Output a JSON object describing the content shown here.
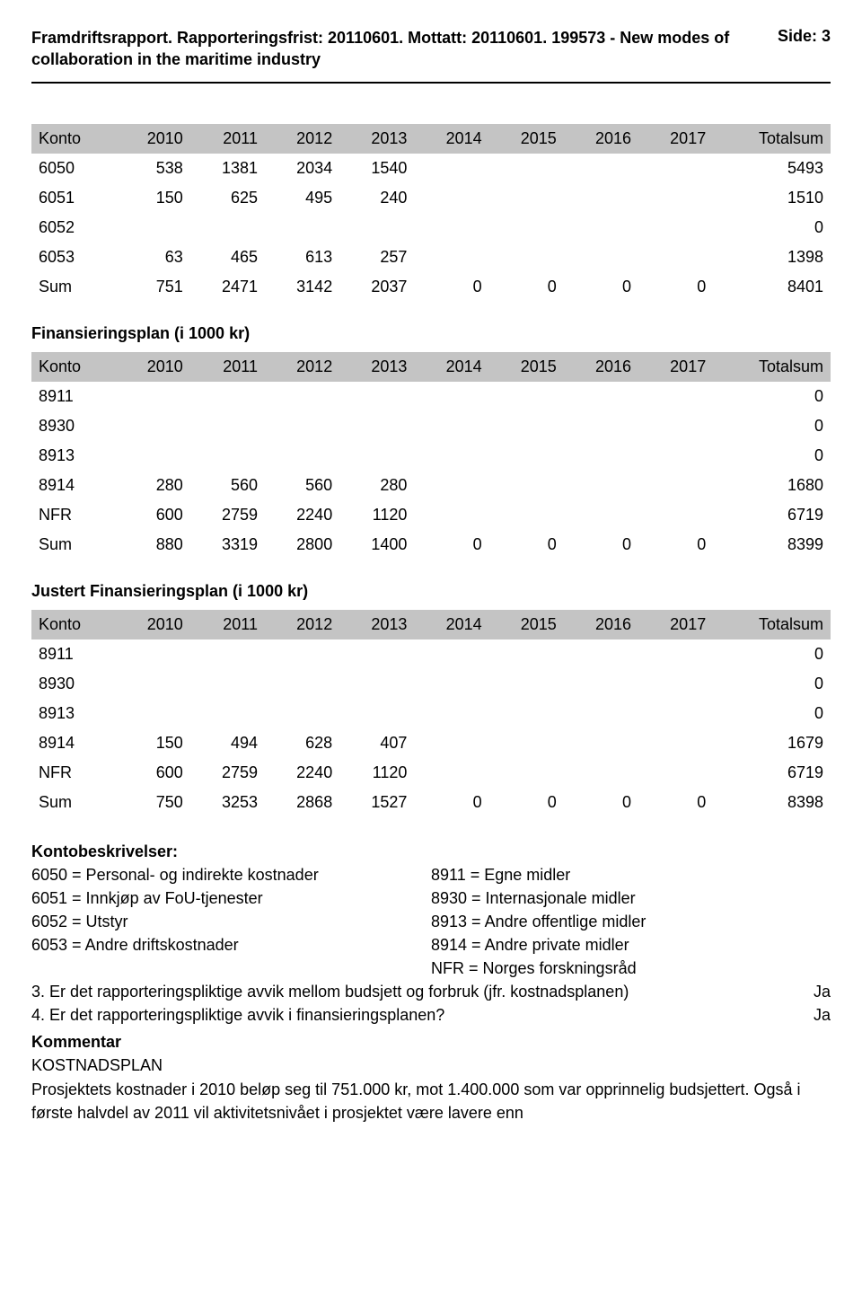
{
  "header": {
    "title_line": "Framdriftsrapport. Rapporteringsfrist: 20110601. Mottatt: 20110601.",
    "subtitle": "199573 - New modes of collaboration in the maritime industry",
    "page_label": "Side: 3"
  },
  "table1": {
    "columns": [
      "Konto",
      "2010",
      "2011",
      "2012",
      "2013",
      "2014",
      "2015",
      "2016",
      "2017",
      "Totalsum"
    ],
    "rows": [
      [
        "6050",
        "538",
        "1381",
        "2034",
        "1540",
        "",
        "",
        "",
        "",
        "5493"
      ],
      [
        "6051",
        "150",
        "625",
        "495",
        "240",
        "",
        "",
        "",
        "",
        "1510"
      ],
      [
        "6052",
        "",
        "",
        "",
        "",
        "",
        "",
        "",
        "",
        "0"
      ],
      [
        "6053",
        "63",
        "465",
        "613",
        "257",
        "",
        "",
        "",
        "",
        "1398"
      ],
      [
        "Sum",
        "751",
        "2471",
        "3142",
        "2037",
        "0",
        "0",
        "0",
        "0",
        "8401"
      ]
    ]
  },
  "section2_title": "Finansieringsplan (i 1000 kr)",
  "table2": {
    "columns": [
      "Konto",
      "2010",
      "2011",
      "2012",
      "2013",
      "2014",
      "2015",
      "2016",
      "2017",
      "Totalsum"
    ],
    "rows": [
      [
        "8911",
        "",
        "",
        "",
        "",
        "",
        "",
        "",
        "",
        "0"
      ],
      [
        "8930",
        "",
        "",
        "",
        "",
        "",
        "",
        "",
        "",
        "0"
      ],
      [
        "8913",
        "",
        "",
        "",
        "",
        "",
        "",
        "",
        "",
        "0"
      ],
      [
        "8914",
        "280",
        "560",
        "560",
        "280",
        "",
        "",
        "",
        "",
        "1680"
      ],
      [
        "NFR",
        "600",
        "2759",
        "2240",
        "1120",
        "",
        "",
        "",
        "",
        "6719"
      ],
      [
        "Sum",
        "880",
        "3319",
        "2800",
        "1400",
        "0",
        "0",
        "0",
        "0",
        "8399"
      ]
    ]
  },
  "section3_title": "Justert Finansieringsplan (i 1000 kr)",
  "table3": {
    "columns": [
      "Konto",
      "2010",
      "2011",
      "2012",
      "2013",
      "2014",
      "2015",
      "2016",
      "2017",
      "Totalsum"
    ],
    "rows": [
      [
        "8911",
        "",
        "",
        "",
        "",
        "",
        "",
        "",
        "",
        "0"
      ],
      [
        "8930",
        "",
        "",
        "",
        "",
        "",
        "",
        "",
        "",
        "0"
      ],
      [
        "8913",
        "",
        "",
        "",
        "",
        "",
        "",
        "",
        "",
        "0"
      ],
      [
        "8914",
        "150",
        "494",
        "628",
        "407",
        "",
        "",
        "",
        "",
        "1679"
      ],
      [
        "NFR",
        "600",
        "2759",
        "2240",
        "1120",
        "",
        "",
        "",
        "",
        "6719"
      ],
      [
        "Sum",
        "750",
        "3253",
        "2868",
        "1527",
        "0",
        "0",
        "0",
        "0",
        "8398"
      ]
    ]
  },
  "descriptions": {
    "title": "Kontobeskrivelser:",
    "left": [
      "6050 = Personal- og indirekte kostnader",
      "6051 = Innkjøp av FoU-tjenester",
      "6052 = Utstyr",
      "6053 = Andre driftskostnader"
    ],
    "right": [
      "8911 = Egne midler",
      "8930 = Internasjonale midler",
      "8913 = Andre offentlige midler",
      "8914 = Andre private midler",
      "NFR = Norges forskningsråd"
    ]
  },
  "questions": [
    {
      "num": "3.",
      "text": "Er det rapporteringspliktige avvik mellom budsjett og forbruk (jfr. kostnadsplanen)",
      "answer": "Ja"
    },
    {
      "num": "4.",
      "text": "Er det rapporteringspliktige avvik i finansieringsplanen?",
      "answer": "Ja"
    }
  ],
  "comment": {
    "title": "Kommentar",
    "subtitle": "KOSTNADSPLAN",
    "body": "Prosjektets kostnader i 2010 beløp seg til 751.000 kr, mot 1.400.000 som var opprinnelig budsjettert. Også i første halvdel av 2011 vil aktivitetsnivået i prosjektet være lavere enn"
  }
}
